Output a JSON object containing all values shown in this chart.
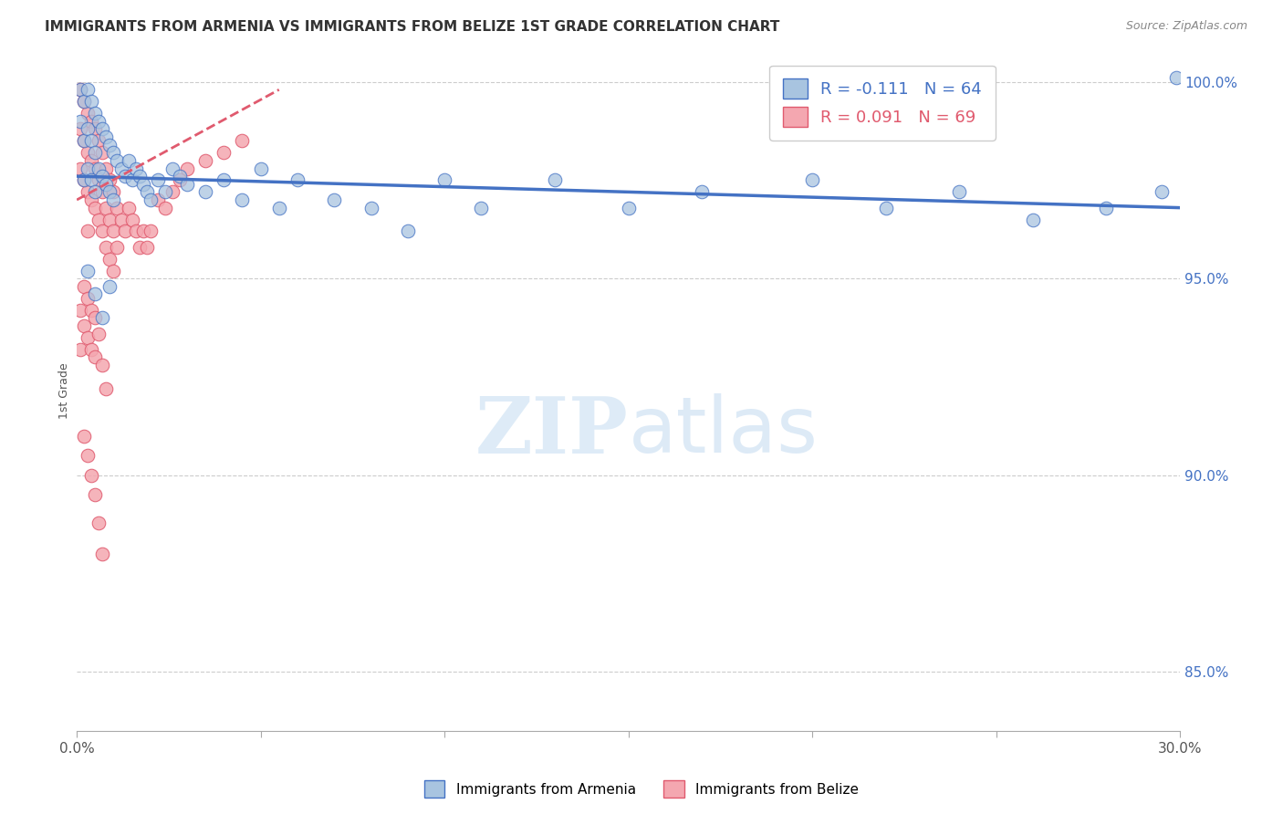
{
  "title": "IMMIGRANTS FROM ARMENIA VS IMMIGRANTS FROM BELIZE 1ST GRADE CORRELATION CHART",
  "source_text": "Source: ZipAtlas.com",
  "ylabel": "1st Grade",
  "xmin": 0.0,
  "xmax": 0.3,
  "ymin": 0.835,
  "ymax": 1.008,
  "yticks": [
    0.85,
    0.9,
    0.95,
    1.0
  ],
  "ytick_labels": [
    "85.0%",
    "90.0%",
    "95.0%",
    "100.0%"
  ],
  "xticks": [
    0.0,
    0.05,
    0.1,
    0.15,
    0.2,
    0.25,
    0.3
  ],
  "legend_R1": "R = -0.111",
  "legend_N1": "N = 64",
  "legend_R2": "R = 0.091",
  "legend_N2": "N = 69",
  "legend_label1": "Immigrants from Armenia",
  "legend_label2": "Immigrants from Belize",
  "color_armenia": "#a8c4e0",
  "color_belize": "#f4a7b0",
  "trend_color_armenia": "#4472c4",
  "trend_color_belize": "#e05a6e",
  "blue_scatter_x": [
    0.001,
    0.001,
    0.002,
    0.002,
    0.002,
    0.003,
    0.003,
    0.003,
    0.004,
    0.004,
    0.004,
    0.005,
    0.005,
    0.005,
    0.006,
    0.006,
    0.007,
    0.007,
    0.008,
    0.008,
    0.009,
    0.009,
    0.01,
    0.01,
    0.011,
    0.012,
    0.013,
    0.014,
    0.015,
    0.016,
    0.017,
    0.018,
    0.019,
    0.02,
    0.022,
    0.024,
    0.026,
    0.028,
    0.03,
    0.035,
    0.04,
    0.045,
    0.05,
    0.055,
    0.06,
    0.07,
    0.08,
    0.09,
    0.1,
    0.11,
    0.13,
    0.15,
    0.17,
    0.2,
    0.22,
    0.24,
    0.26,
    0.28,
    0.295,
    0.299,
    0.003,
    0.005,
    0.007,
    0.009
  ],
  "blue_scatter_y": [
    0.998,
    0.99,
    0.995,
    0.985,
    0.975,
    0.998,
    0.988,
    0.978,
    0.995,
    0.985,
    0.975,
    0.992,
    0.982,
    0.972,
    0.99,
    0.978,
    0.988,
    0.976,
    0.986,
    0.974,
    0.984,
    0.972,
    0.982,
    0.97,
    0.98,
    0.978,
    0.976,
    0.98,
    0.975,
    0.978,
    0.976,
    0.974,
    0.972,
    0.97,
    0.975,
    0.972,
    0.978,
    0.976,
    0.974,
    0.972,
    0.975,
    0.97,
    0.978,
    0.968,
    0.975,
    0.97,
    0.968,
    0.962,
    0.975,
    0.968,
    0.975,
    0.968,
    0.972,
    0.975,
    0.968,
    0.972,
    0.965,
    0.968,
    0.972,
    1.001,
    0.952,
    0.946,
    0.94,
    0.948
  ],
  "pink_scatter_x": [
    0.001,
    0.001,
    0.001,
    0.002,
    0.002,
    0.002,
    0.003,
    0.003,
    0.003,
    0.003,
    0.004,
    0.004,
    0.004,
    0.005,
    0.005,
    0.005,
    0.006,
    0.006,
    0.006,
    0.007,
    0.007,
    0.007,
    0.008,
    0.008,
    0.008,
    0.009,
    0.009,
    0.009,
    0.01,
    0.01,
    0.01,
    0.011,
    0.011,
    0.012,
    0.013,
    0.014,
    0.015,
    0.016,
    0.017,
    0.018,
    0.019,
    0.02,
    0.022,
    0.024,
    0.026,
    0.028,
    0.03,
    0.035,
    0.04,
    0.045,
    0.001,
    0.001,
    0.002,
    0.002,
    0.003,
    0.003,
    0.004,
    0.004,
    0.005,
    0.005,
    0.006,
    0.007,
    0.008,
    0.002,
    0.003,
    0.004,
    0.005,
    0.006,
    0.007
  ],
  "pink_scatter_y": [
    0.998,
    0.988,
    0.978,
    0.995,
    0.985,
    0.975,
    0.992,
    0.982,
    0.972,
    0.962,
    0.99,
    0.98,
    0.97,
    0.988,
    0.978,
    0.968,
    0.985,
    0.975,
    0.965,
    0.982,
    0.972,
    0.962,
    0.978,
    0.968,
    0.958,
    0.975,
    0.965,
    0.955,
    0.972,
    0.962,
    0.952,
    0.968,
    0.958,
    0.965,
    0.962,
    0.968,
    0.965,
    0.962,
    0.958,
    0.962,
    0.958,
    0.962,
    0.97,
    0.968,
    0.972,
    0.975,
    0.978,
    0.98,
    0.982,
    0.985,
    0.942,
    0.932,
    0.948,
    0.938,
    0.945,
    0.935,
    0.942,
    0.932,
    0.94,
    0.93,
    0.936,
    0.928,
    0.922,
    0.91,
    0.905,
    0.9,
    0.895,
    0.888,
    0.88
  ]
}
